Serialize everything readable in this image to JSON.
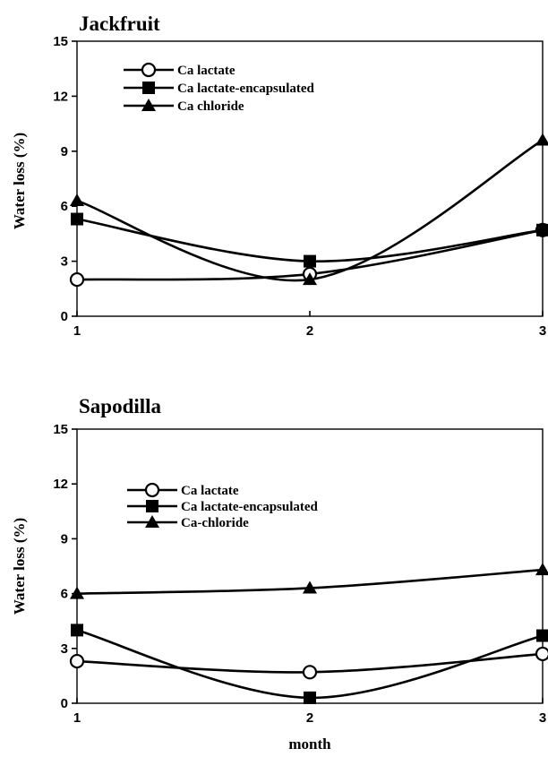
{
  "chart_data": [
    {
      "type": "line",
      "title": "Jackfruit",
      "xlabel": "",
      "ylabel": "Water loss (%)",
      "x": [
        1,
        2,
        3
      ],
      "x_tick_labels": [
        "1",
        "2",
        "3"
      ],
      "ylim": [
        0,
        15
      ],
      "y_ticks": [
        0,
        3,
        6,
        9,
        12,
        15
      ],
      "y_tick_labels": [
        "0",
        "3",
        "6",
        "9",
        "12",
        "15"
      ],
      "grid": false,
      "legend_position": "top-left",
      "series": [
        {
          "name": "Ca lactate",
          "marker": "circle-open",
          "values": [
            2.0,
            2.3,
            4.7
          ]
        },
        {
          "name": "Ca lactate-encapsulated",
          "marker": "square-filled",
          "values": [
            5.3,
            3.0,
            4.7
          ]
        },
        {
          "name": "Ca chloride",
          "marker": "triangle-filled",
          "values": [
            6.3,
            2.0,
            9.6
          ]
        }
      ]
    },
    {
      "type": "line",
      "title": "Sapodilla",
      "xlabel": "month",
      "ylabel": "Water loss (%)",
      "x": [
        1,
        2,
        3
      ],
      "x_tick_labels": [
        "1",
        "2",
        "3"
      ],
      "ylim": [
        0,
        15
      ],
      "y_ticks": [
        0,
        3,
        6,
        9,
        12,
        15
      ],
      "y_tick_labels": [
        "0",
        "3",
        "6",
        "9",
        "12",
        "15"
      ],
      "grid": false,
      "legend_position": "top-left",
      "series": [
        {
          "name": "Ca lactate",
          "marker": "circle-open",
          "values": [
            2.3,
            1.7,
            2.7
          ]
        },
        {
          "name": "Ca lactate-encapsulated",
          "marker": "square-filled",
          "values": [
            4.0,
            0.3,
            3.7
          ]
        },
        {
          "name": "Ca-chloride",
          "marker": "triangle-filled",
          "values": [
            6.0,
            6.3,
            7.3
          ]
        }
      ]
    }
  ],
  "colors": {
    "ink": "#000000",
    "background": "#ffffff"
  }
}
